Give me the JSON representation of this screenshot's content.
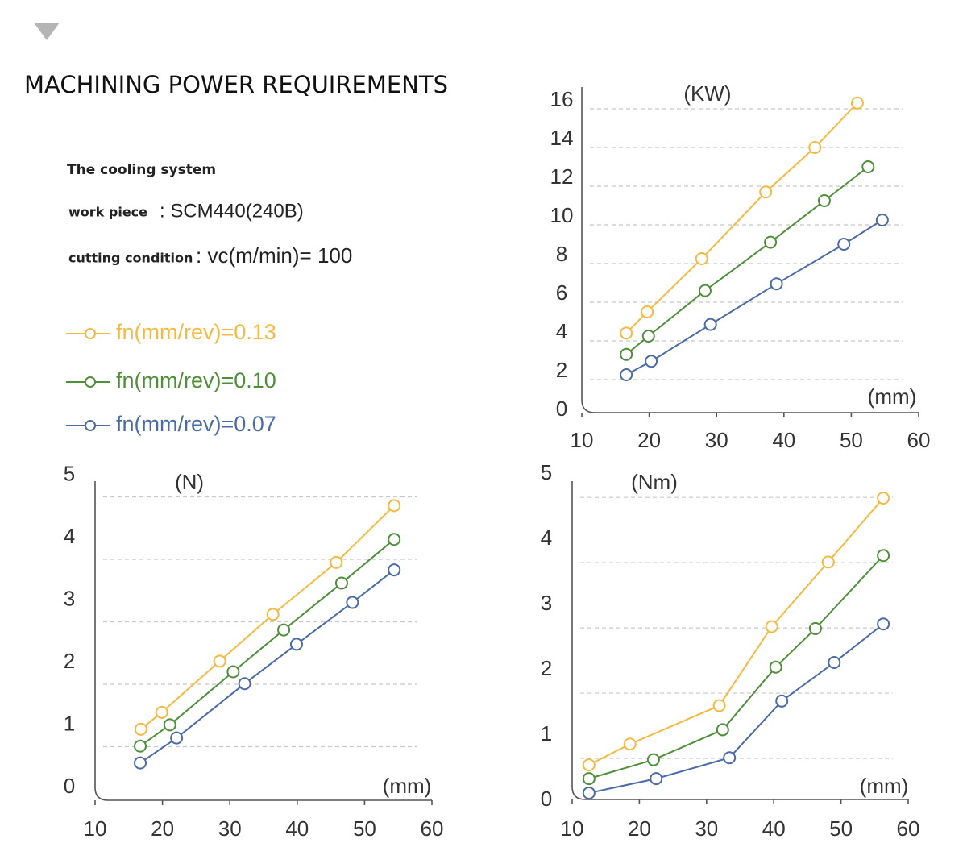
{
  "header": {
    "title": "MACHINING POWER REQUIREMENTS",
    "subtitle": "The cooling system",
    "info": [
      {
        "label": "work piece",
        "value": ": SCM440(240B)"
      },
      {
        "label": "cutting condition",
        "value": ": vc(m/min)= 100"
      }
    ]
  },
  "chart_data": [
    {
      "type": "line",
      "y_label": "(KW)",
      "x_label": "(mm)",
      "xlim": [
        10,
        60
      ],
      "xticks": [
        10,
        20,
        30,
        40,
        50,
        60
      ],
      "ylim": [
        0,
        17
      ],
      "yticks": [
        0,
        2,
        4,
        6,
        8,
        10,
        12,
        14,
        16
      ],
      "grid": true,
      "series": [
        {
          "name": "fn(mm/rev)=0.13",
          "color": "#f5b942",
          "x": [
            16.6,
            19.7,
            27.8,
            37.3,
            44.6,
            50.9
          ],
          "values": [
            4.4,
            5.5,
            8.25,
            11.7,
            14.0,
            16.3
          ]
        },
        {
          "name": "fn(mm/rev)=0.10",
          "color": "#4e8f3a",
          "x": [
            16.6,
            19.9,
            28.3,
            38.0,
            46.0,
            52.5
          ],
          "values": [
            3.3,
            4.25,
            6.6,
            9.1,
            11.25,
            13.0
          ]
        },
        {
          "name": "fn(mm/rev)=0.07",
          "color": "#4a6aa8",
          "x": [
            16.6,
            20.3,
            29.1,
            38.9,
            48.9,
            54.6
          ],
          "values": [
            2.25,
            2.95,
            4.85,
            6.95,
            9.0,
            10.25
          ]
        }
      ]
    },
    {
      "type": "line",
      "y_label": "(N)",
      "x_label": "(mm)",
      "xlim": [
        10,
        60
      ],
      "xticks": [
        10,
        20,
        30,
        40,
        50,
        60
      ],
      "ylim": [
        0,
        5.2
      ],
      "yticks": [
        0,
        1,
        2,
        3,
        4,
        5
      ],
      "grid": true,
      "series": [
        {
          "color": "#f5b942",
          "x": [
            16.8,
            19.9,
            28.5,
            36.4,
            45.8,
            54.4
          ],
          "values": [
            1.28,
            1.55,
            2.37,
            3.12,
            3.95,
            4.86
          ]
        },
        {
          "color": "#4e8f3a",
          "x": [
            16.7,
            21.1,
            30.5,
            38.0,
            46.6,
            54.4
          ],
          "values": [
            1.01,
            1.35,
            2.2,
            2.87,
            3.62,
            4.32
          ]
        },
        {
          "color": "#4a6aa8",
          "x": [
            16.7,
            22.1,
            32.2,
            39.9,
            48.2,
            54.4
          ],
          "values": [
            0.74,
            1.14,
            2.01,
            2.64,
            3.31,
            3.83
          ]
        }
      ]
    },
    {
      "type": "line",
      "y_label": "(Nm)",
      "x_label": "(mm)",
      "xlim": [
        10,
        60
      ],
      "xticks": [
        10,
        20,
        30,
        40,
        50,
        60
      ],
      "ylim": [
        0,
        5.2
      ],
      "yticks": [
        0,
        1,
        2,
        3,
        4,
        5
      ],
      "grid": true,
      "series": [
        {
          "color": "#f5b942",
          "x": [
            12.5,
            18.6,
            31.9,
            39.7,
            48.1,
            56.3
          ],
          "values": [
            0.9,
            1.22,
            1.81,
            3.02,
            4.01,
            4.99
          ]
        },
        {
          "color": "#4e8f3a",
          "x": [
            12.5,
            22.1,
            32.4,
            40.3,
            46.2,
            56.3
          ],
          "values": [
            0.69,
            0.98,
            1.44,
            2.4,
            2.99,
            4.11
          ]
        },
        {
          "color": "#4a6aa8",
          "x": [
            12.5,
            22.5,
            33.4,
            41.2,
            49.0,
            56.3
          ],
          "values": [
            0.47,
            0.69,
            1.01,
            1.88,
            2.47,
            3.06
          ]
        }
      ]
    }
  ]
}
